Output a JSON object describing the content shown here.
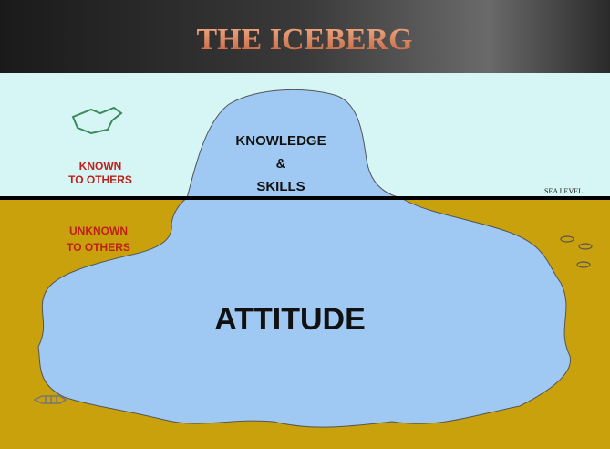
{
  "header": {
    "title": "THE ICEBERG"
  },
  "above_water": {
    "label_lines": [
      "KNOWN",
      "TO OTHERS"
    ],
    "iceberg_lines": [
      "KNOWLEDGE",
      "&",
      "SKILLS"
    ]
  },
  "sea_level": "SEA LEVEL",
  "below_water": {
    "label_lines": [
      "UNKNOWN",
      "TO OTHERS"
    ],
    "iceberg_label": "ATTITUDE"
  }
}
